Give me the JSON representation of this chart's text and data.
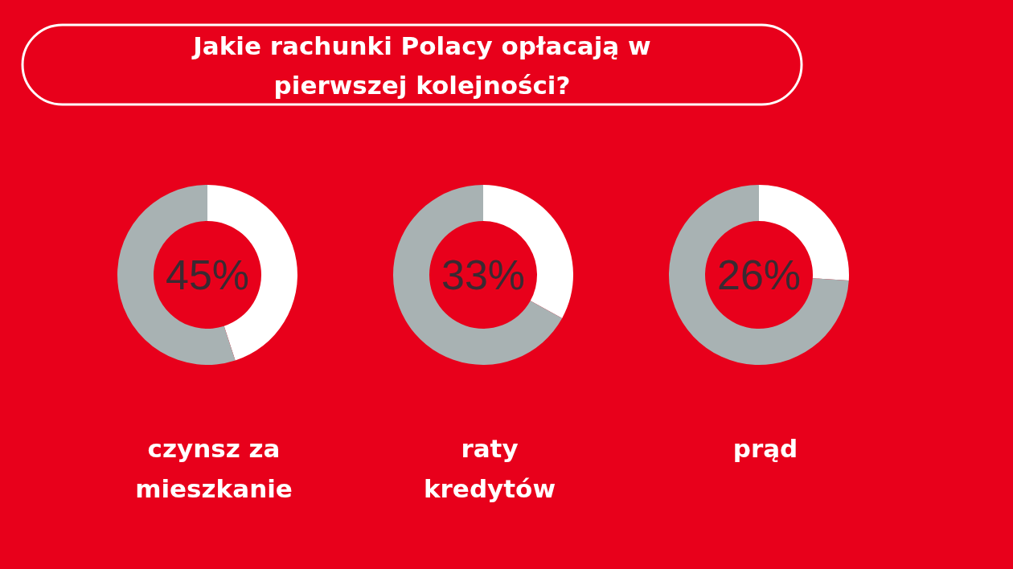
{
  "chart_data": [
    {
      "type": "donut",
      "title": "Jakie rachunki Polacy opłacają w pierwszej kolejności?",
      "categories": [
        null,
        null
      ],
      "values": [
        45,
        55
      ],
      "colors": [
        "#ffffff",
        "#a8b2b3"
      ],
      "xlabel": "czynsz za mieszkanie",
      "annotations": [
        "45%"
      ]
    },
    {
      "type": "donut",
      "categories": [
        null,
        null
      ],
      "values": [
        33,
        67
      ],
      "colors": [
        "#ffffff",
        "#a8b2b3"
      ],
      "xlabel": "raty kredytów",
      "annotations": [
        "33%"
      ]
    },
    {
      "type": "donut",
      "categories": [
        null,
        null
      ],
      "values": [
        26,
        74
      ],
      "colors": [
        "#ffffff",
        "#a8b2b3"
      ],
      "xlabel": "prąd",
      "annotations": [
        "26%"
      ]
    }
  ]
}
